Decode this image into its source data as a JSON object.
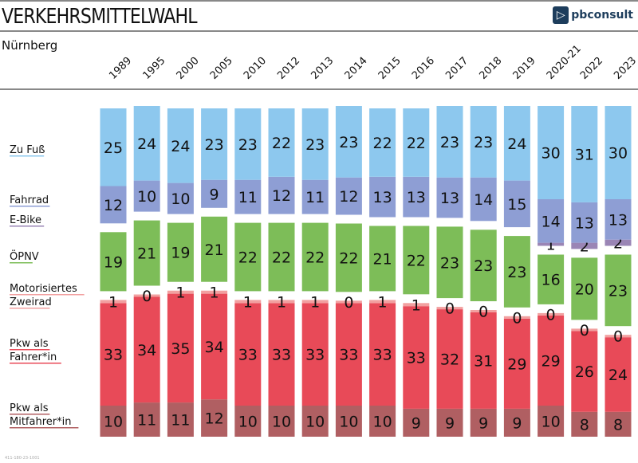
{
  "header": {
    "title": "VERKEHRSMITTELWAHL",
    "subtitle": "Nürnberg",
    "logo_text": "pbconsult",
    "footer_code": "411-180-23-1001"
  },
  "chart_data": {
    "type": "bar",
    "stacked": true,
    "orientation": "vertical",
    "unit": "percent",
    "categories": [
      "1989",
      "1995",
      "2000",
      "2005",
      "2010",
      "2012",
      "2013",
      "2014",
      "2015",
      "2016",
      "2017",
      "2018",
      "2019",
      "2020-21",
      "2022",
      "2023"
    ],
    "series": [
      {
        "name": "Pkw als Mitfahrer*in",
        "color": "#b05f62",
        "values": [
          10,
          11,
          11,
          12,
          10,
          10,
          10,
          10,
          10,
          9,
          9,
          9,
          9,
          10,
          8,
          8
        ]
      },
      {
        "name": "Pkw als Fahrer*in",
        "color": "#e84a58",
        "values": [
          33,
          34,
          35,
          34,
          33,
          33,
          33,
          33,
          33,
          33,
          32,
          31,
          29,
          29,
          26,
          24
        ]
      },
      {
        "name": "Motorisiertes Zweirad",
        "color": "#f2a0a0",
        "values": [
          1,
          0,
          1,
          1,
          1,
          1,
          1,
          0,
          1,
          1,
          0,
          0,
          0,
          0,
          0,
          0
        ]
      },
      {
        "name": "ÖPNV",
        "color": "#7dbd58",
        "values": [
          19,
          21,
          19,
          21,
          22,
          22,
          22,
          22,
          21,
          22,
          23,
          23,
          23,
          16,
          20,
          23
        ]
      },
      {
        "name": "E-Bike",
        "color": "#9a85b5",
        "values": [
          null,
          null,
          null,
          null,
          null,
          null,
          null,
          null,
          null,
          null,
          null,
          null,
          null,
          1,
          2,
          2
        ]
      },
      {
        "name": "Fahrrad",
        "color": "#8e9ed4",
        "values": [
          12,
          10,
          10,
          9,
          11,
          12,
          11,
          12,
          13,
          13,
          13,
          14,
          15,
          14,
          13,
          13
        ]
      },
      {
        "name": "Zu Fuß",
        "color": "#8dc8ee",
        "values": [
          25,
          24,
          24,
          23,
          23,
          22,
          23,
          23,
          22,
          22,
          23,
          23,
          24,
          30,
          31,
          30
        ]
      }
    ],
    "legend_placement": "left",
    "grid": false
  }
}
